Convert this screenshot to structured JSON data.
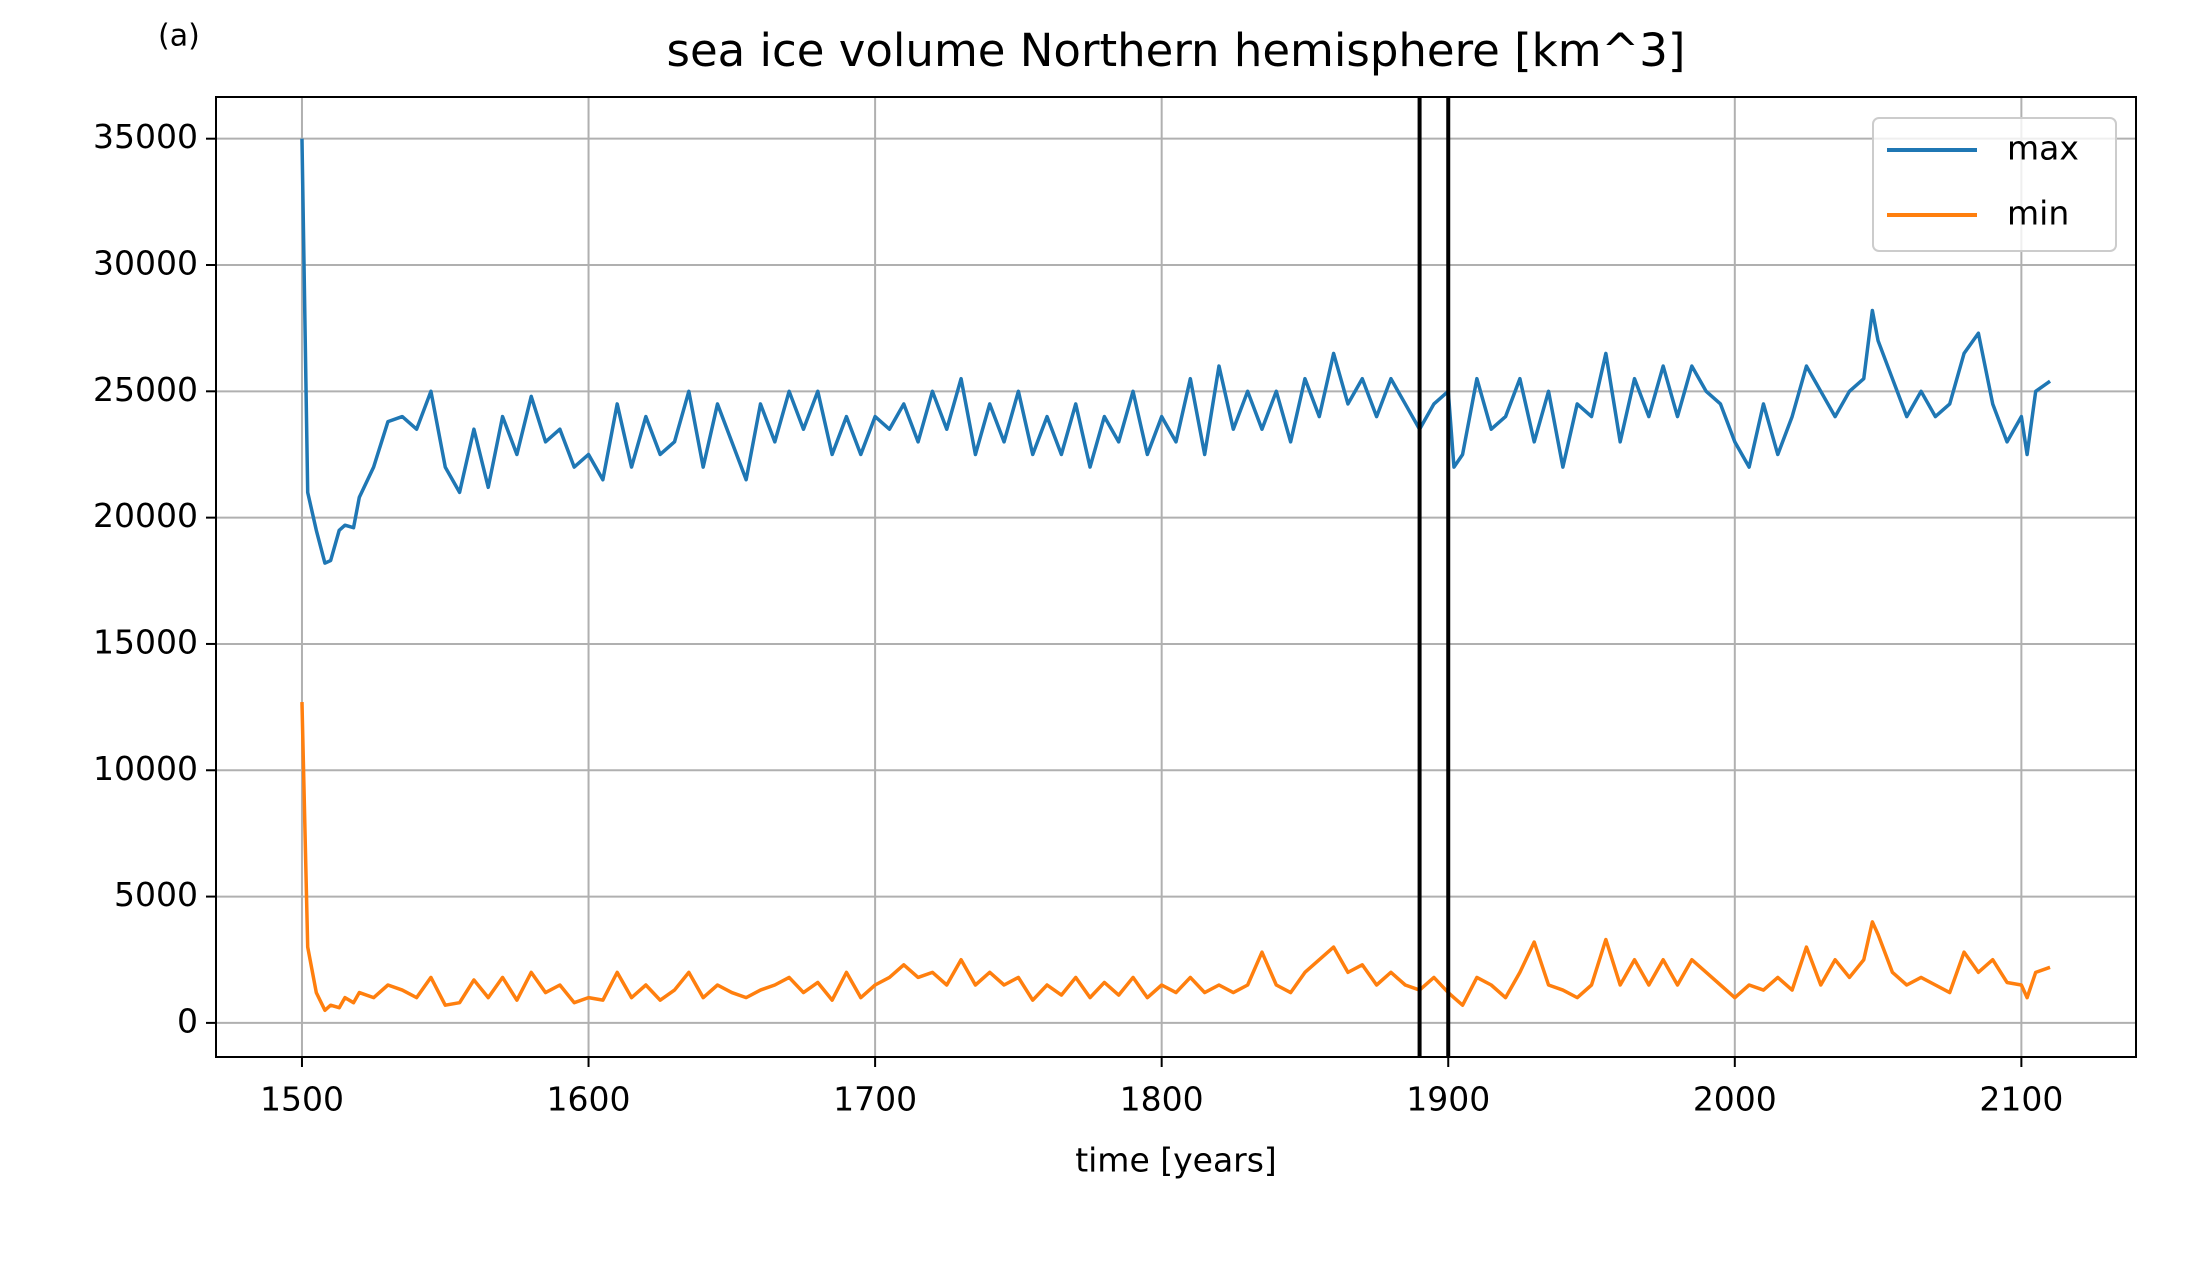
{
  "panel_label": "(a)",
  "chart_data": {
    "type": "line",
    "title": "sea ice volume Northern hemisphere [km^3]",
    "x_label": "time [years]",
    "x": [
      1500,
      1502,
      1505,
      1508,
      1510,
      1513,
      1515,
      1518,
      1520,
      1525,
      1530,
      1535,
      1540,
      1545,
      1550,
      1555,
      1560,
      1565,
      1570,
      1575,
      1580,
      1585,
      1590,
      1595,
      1600,
      1605,
      1610,
      1615,
      1620,
      1625,
      1630,
      1635,
      1640,
      1645,
      1650,
      1655,
      1660,
      1665,
      1670,
      1675,
      1680,
      1685,
      1690,
      1695,
      1700,
      1705,
      1710,
      1715,
      1720,
      1725,
      1730,
      1735,
      1740,
      1745,
      1750,
      1755,
      1760,
      1765,
      1770,
      1775,
      1780,
      1785,
      1790,
      1795,
      1800,
      1805,
      1810,
      1815,
      1820,
      1825,
      1830,
      1835,
      1840,
      1845,
      1850,
      1855,
      1860,
      1865,
      1870,
      1875,
      1880,
      1885,
      1890,
      1895,
      1900,
      1902,
      1905,
      1910,
      1915,
      1920,
      1925,
      1930,
      1935,
      1940,
      1945,
      1950,
      1955,
      1960,
      1965,
      1970,
      1975,
      1980,
      1985,
      1990,
      1995,
      2000,
      2005,
      2010,
      2015,
      2020,
      2025,
      2030,
      2035,
      2040,
      2045,
      2048,
      2050,
      2055,
      2060,
      2065,
      2070,
      2075,
      2080,
      2085,
      2090,
      2095,
      2100,
      2102,
      2105,
      2110
    ],
    "series": [
      {
        "name": "max",
        "color": "#1f77b4",
        "values": [
          35000,
          21000,
          19500,
          18200,
          18300,
          19500,
          19700,
          19600,
          20800,
          22000,
          23800,
          24000,
          23500,
          25000,
          22000,
          21000,
          23500,
          21200,
          24000,
          22500,
          24800,
          23000,
          23500,
          22000,
          22500,
          21500,
          24500,
          22000,
          24000,
          22500,
          23000,
          25000,
          22000,
          24500,
          23000,
          21500,
          24500,
          23000,
          25000,
          23500,
          25000,
          22500,
          24000,
          22500,
          24000,
          23500,
          24500,
          23000,
          25000,
          23500,
          25500,
          22500,
          24500,
          23000,
          25000,
          22500,
          24000,
          22500,
          24500,
          22000,
          24000,
          23000,
          25000,
          22500,
          24000,
          23000,
          25500,
          22500,
          26000,
          23500,
          25000,
          23500,
          25000,
          23000,
          25500,
          24000,
          26500,
          24500,
          25500,
          24000,
          25500,
          24500,
          23500,
          24500,
          25000,
          22000,
          22500,
          25500,
          23500,
          24000,
          25500,
          23000,
          25000,
          22000,
          24500,
          24000,
          26500,
          23000,
          25500,
          24000,
          26000,
          24000,
          26000,
          25000,
          24500,
          23000,
          22000,
          24500,
          22500,
          24000,
          26000,
          25000,
          24000,
          25000,
          25500,
          28200,
          27000,
          25500,
          24000,
          25000,
          24000,
          24500,
          26500,
          27300,
          24500,
          23000,
          24000,
          22500,
          25000,
          25400
        ]
      },
      {
        "name": "min",
        "color": "#ff7f0e",
        "values": [
          12700,
          3000,
          1200,
          500,
          700,
          600,
          1000,
          800,
          1200,
          1000,
          1500,
          1300,
          1000,
          1800,
          700,
          800,
          1700,
          1000,
          1800,
          900,
          2000,
          1200,
          1500,
          800,
          1000,
          900,
          2000,
          1000,
          1500,
          900,
          1300,
          2000,
          1000,
          1500,
          1200,
          1000,
          1300,
          1500,
          1800,
          1200,
          1600,
          900,
          2000,
          1000,
          1500,
          1800,
          2300,
          1800,
          2000,
          1500,
          2500,
          1500,
          2000,
          1500,
          1800,
          900,
          1500,
          1100,
          1800,
          1000,
          1600,
          1100,
          1800,
          1000,
          1500,
          1200,
          1800,
          1200,
          1500,
          1200,
          1500,
          2800,
          1500,
          1200,
          2000,
          2500,
          3000,
          2000,
          2300,
          1500,
          2000,
          1500,
          1300,
          1800,
          1200,
          1000,
          700,
          1800,
          1500,
          1000,
          2000,
          3200,
          1500,
          1300,
          1000,
          1500,
          3300,
          1500,
          2500,
          1500,
          2500,
          1500,
          2500,
          2000,
          1500,
          1000,
          1500,
          1300,
          1800,
          1300,
          3000,
          1500,
          2500,
          1800,
          2500,
          4000,
          3500,
          2000,
          1500,
          1800,
          1500,
          1200,
          2800,
          2000,
          2500,
          1600,
          1500,
          1000,
          2000,
          2200
        ]
      }
    ],
    "vlines": [
      1890,
      1900
    ],
    "vline_color": "#000000",
    "xlim": [
      1470,
      2140
    ],
    "ylim": [
      -1350,
      36650
    ],
    "xticks": [
      1500,
      1600,
      1700,
      1800,
      1900,
      2000,
      2100
    ],
    "yticks": [
      0,
      5000,
      10000,
      15000,
      20000,
      25000,
      30000,
      35000
    ],
    "grid": true,
    "legend": "upper right"
  }
}
